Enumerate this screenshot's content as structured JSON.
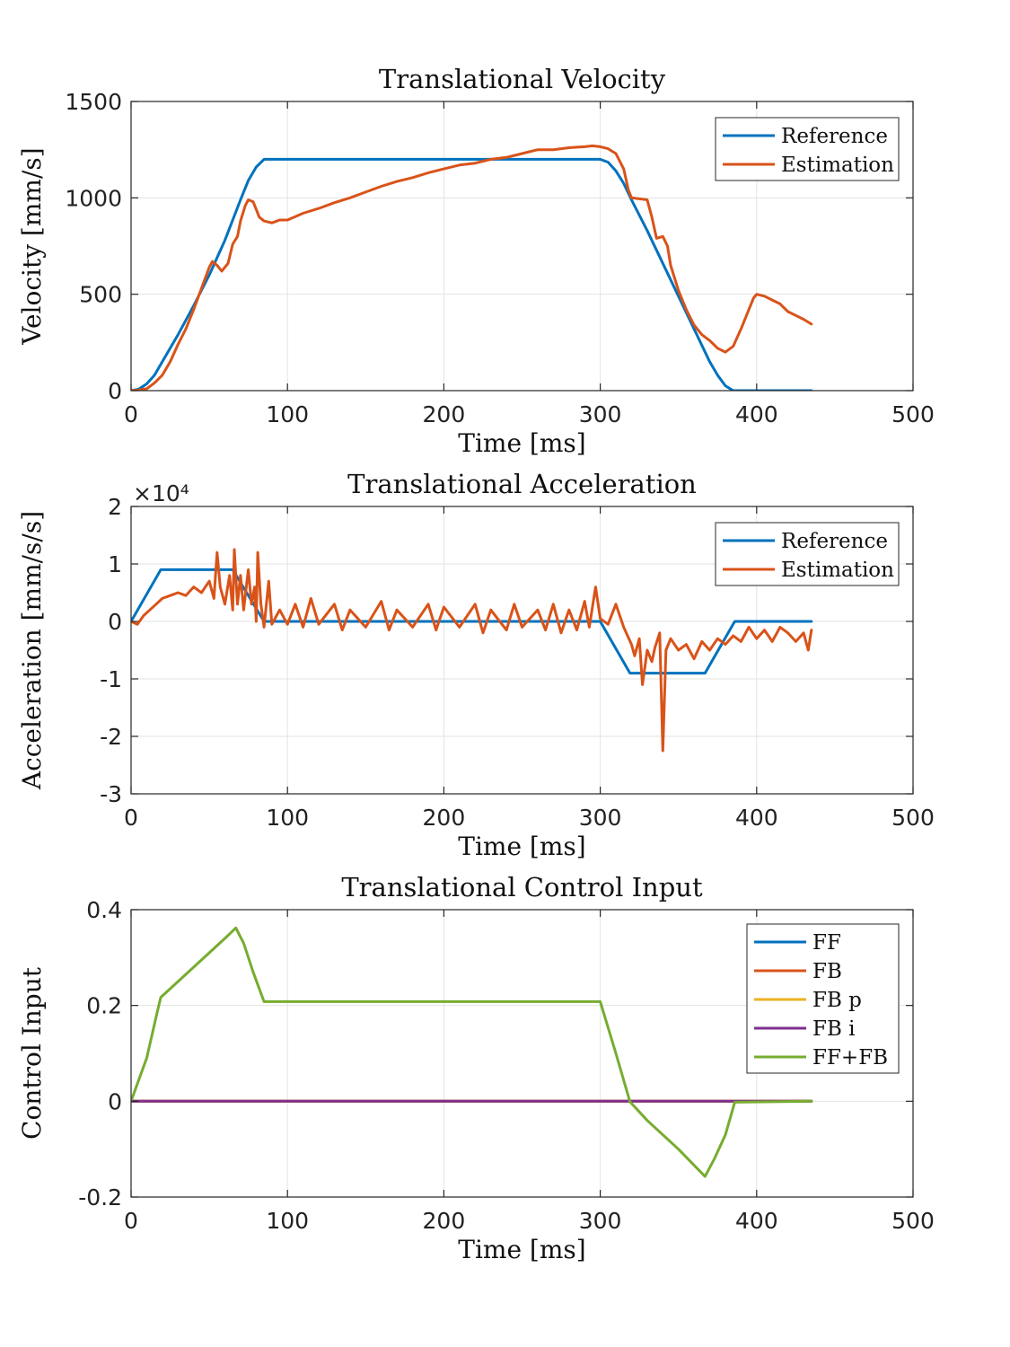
{
  "chart_data": [
    {
      "type": "line",
      "title": "Translational Velocity",
      "xlabel": "Time [ms]",
      "ylabel": "Velocity [mm/s]",
      "xlim": [
        0,
        500
      ],
      "ylim": [
        0,
        1500
      ],
      "xticks": [
        0,
        100,
        200,
        300,
        400,
        500
      ],
      "yticks": [
        0,
        500,
        1000,
        1500
      ],
      "xtick_labels": [
        "0",
        "100",
        "200",
        "300",
        "400",
        "500"
      ],
      "ytick_labels": [
        "0",
        "500",
        "1000",
        "1500"
      ],
      "exponent_label": "",
      "grid": true,
      "legend_position": "top-right",
      "series": [
        {
          "name": "Reference",
          "color": "#0072BD",
          "points": [
            [
              0,
              0
            ],
            [
              5,
              8
            ],
            [
              10,
              35
            ],
            [
              15,
              80
            ],
            [
              20,
              150
            ],
            [
              30,
              290
            ],
            [
              40,
              440
            ],
            [
              50,
              600
            ],
            [
              60,
              780
            ],
            [
              70,
              990
            ],
            [
              75,
              1090
            ],
            [
              80,
              1160
            ],
            [
              85,
              1200
            ],
            [
              150,
              1200
            ],
            [
              200,
              1200
            ],
            [
              250,
              1200
            ],
            [
              300,
              1200
            ],
            [
              305,
              1185
            ],
            [
              310,
              1140
            ],
            [
              315,
              1075
            ],
            [
              320,
              990
            ],
            [
              330,
              830
            ],
            [
              340,
              660
            ],
            [
              350,
              490
            ],
            [
              360,
              320
            ],
            [
              370,
              150
            ],
            [
              375,
              80
            ],
            [
              380,
              25
            ],
            [
              385,
              0
            ],
            [
              435,
              0
            ]
          ]
        },
        {
          "name": "Estimation",
          "color": "#D95319",
          "points": [
            [
              0,
              0
            ],
            [
              5,
              3
            ],
            [
              10,
              10
            ],
            [
              15,
              40
            ],
            [
              20,
              80
            ],
            [
              25,
              150
            ],
            [
              30,
              240
            ],
            [
              35,
              320
            ],
            [
              40,
              420
            ],
            [
              45,
              530
            ],
            [
              50,
              640
            ],
            [
              52,
              670
            ],
            [
              55,
              650
            ],
            [
              58,
              620
            ],
            [
              62,
              660
            ],
            [
              65,
              760
            ],
            [
              68,
              800
            ],
            [
              70,
              880
            ],
            [
              73,
              960
            ],
            [
              75,
              990
            ],
            [
              78,
              980
            ],
            [
              80,
              940
            ],
            [
              82,
              900
            ],
            [
              85,
              880
            ],
            [
              90,
              870
            ],
            [
              95,
              885
            ],
            [
              100,
              885
            ],
            [
              110,
              920
            ],
            [
              120,
              945
            ],
            [
              130,
              975
            ],
            [
              140,
              1000
            ],
            [
              150,
              1030
            ],
            [
              160,
              1060
            ],
            [
              170,
              1085
            ],
            [
              180,
              1105
            ],
            [
              190,
              1130
            ],
            [
              200,
              1150
            ],
            [
              210,
              1170
            ],
            [
              220,
              1180
            ],
            [
              230,
              1200
            ],
            [
              240,
              1210
            ],
            [
              250,
              1230
            ],
            [
              260,
              1250
            ],
            [
              270,
              1250
            ],
            [
              280,
              1260
            ],
            [
              290,
              1265
            ],
            [
              295,
              1270
            ],
            [
              300,
              1265
            ],
            [
              305,
              1255
            ],
            [
              310,
              1230
            ],
            [
              315,
              1150
            ],
            [
              318,
              1040
            ],
            [
              320,
              1000
            ],
            [
              325,
              995
            ],
            [
              330,
              990
            ],
            [
              333,
              900
            ],
            [
              336,
              790
            ],
            [
              340,
              800
            ],
            [
              343,
              750
            ],
            [
              345,
              650
            ],
            [
              350,
              520
            ],
            [
              355,
              420
            ],
            [
              360,
              340
            ],
            [
              365,
              290
            ],
            [
              370,
              260
            ],
            [
              375,
              220
            ],
            [
              380,
              200
            ],
            [
              385,
              230
            ],
            [
              390,
              320
            ],
            [
              395,
              420
            ],
            [
              398,
              480
            ],
            [
              400,
              500
            ],
            [
              405,
              490
            ],
            [
              410,
              470
            ],
            [
              415,
              450
            ],
            [
              420,
              410
            ],
            [
              425,
              390
            ],
            [
              430,
              370
            ],
            [
              435,
              345
            ]
          ]
        }
      ]
    },
    {
      "type": "line",
      "title": "Translational Acceleration",
      "xlabel": "Time [ms]",
      "ylabel": "Acceleration [mm/s/s]",
      "exponent_label": "×10⁴",
      "xlim": [
        0,
        500
      ],
      "ylim": [
        -30000,
        20000
      ],
      "xticks": [
        0,
        100,
        200,
        300,
        400,
        500
      ],
      "yticks": [
        -30000,
        -20000,
        -10000,
        0,
        10000,
        20000
      ],
      "xtick_labels": [
        "0",
        "100",
        "200",
        "300",
        "400",
        "500"
      ],
      "ytick_labels": [
        "-3",
        "-2",
        "-1",
        "0",
        "1",
        "2"
      ],
      "grid": true,
      "legend_position": "top-right",
      "series": [
        {
          "name": "Reference",
          "color": "#0072BD",
          "points": [
            [
              0,
              0
            ],
            [
              19,
              9000
            ],
            [
              65,
              9000
            ],
            [
              85,
              0
            ],
            [
              300,
              0
            ],
            [
              319,
              -9000
            ],
            [
              367,
              -9000
            ],
            [
              386,
              0
            ],
            [
              435,
              0
            ]
          ]
        },
        {
          "name": "Estimation",
          "color": "#D95319",
          "points": [
            [
              0,
              0
            ],
            [
              4,
              -500
            ],
            [
              8,
              1000
            ],
            [
              12,
              2000
            ],
            [
              16,
              3000
            ],
            [
              20,
              4000
            ],
            [
              25,
              4500
            ],
            [
              30,
              5000
            ],
            [
              35,
              4500
            ],
            [
              40,
              6000
            ],
            [
              45,
              5000
            ],
            [
              50,
              7000
            ],
            [
              53,
              4000
            ],
            [
              55,
              12000
            ],
            [
              57,
              6000
            ],
            [
              60,
              3000
            ],
            [
              63,
              8000
            ],
            [
              65,
              2000
            ],
            [
              66,
              12500
            ],
            [
              68,
              3000
            ],
            [
              70,
              8000
            ],
            [
              72,
              2000
            ],
            [
              75,
              9000
            ],
            [
              77,
              3000
            ],
            [
              79,
              6000
            ],
            [
              80,
              0
            ],
            [
              81,
              12000
            ],
            [
              83,
              3000
            ],
            [
              85,
              -1000
            ],
            [
              88,
              7000
            ],
            [
              90,
              -500
            ],
            [
              95,
              2000
            ],
            [
              100,
              -500
            ],
            [
              105,
              3000
            ],
            [
              110,
              -1000
            ],
            [
              115,
              4000
            ],
            [
              120,
              -500
            ],
            [
              130,
              3000
            ],
            [
              135,
              -1500
            ],
            [
              140,
              2000
            ],
            [
              150,
              -1000
            ],
            [
              160,
              3500
            ],
            [
              165,
              -1500
            ],
            [
              170,
              2000
            ],
            [
              180,
              -1000
            ],
            [
              190,
              3000
            ],
            [
              195,
              -1500
            ],
            [
              200,
              2500
            ],
            [
              210,
              -1000
            ],
            [
              220,
              3000
            ],
            [
              225,
              -2000
            ],
            [
              230,
              2000
            ],
            [
              240,
              -1500
            ],
            [
              245,
              3000
            ],
            [
              250,
              -1000
            ],
            [
              260,
              2000
            ],
            [
              265,
              -1500
            ],
            [
              270,
              3000
            ],
            [
              275,
              -2000
            ],
            [
              280,
              2000
            ],
            [
              285,
              -1500
            ],
            [
              290,
              3500
            ],
            [
              293,
              -1000
            ],
            [
              297,
              6000
            ],
            [
              300,
              500
            ],
            [
              305,
              -500
            ],
            [
              310,
              3000
            ],
            [
              315,
              -1000
            ],
            [
              320,
              -4000
            ],
            [
              322,
              -6000
            ],
            [
              325,
              -3000
            ],
            [
              327,
              -11000
            ],
            [
              330,
              -5000
            ],
            [
              333,
              -7000
            ],
            [
              335,
              -4500
            ],
            [
              338,
              -2000
            ],
            [
              340,
              -22500
            ],
            [
              342,
              -5000
            ],
            [
              345,
              -3000
            ],
            [
              350,
              -5000
            ],
            [
              355,
              -4000
            ],
            [
              360,
              -6500
            ],
            [
              365,
              -3500
            ],
            [
              370,
              -5000
            ],
            [
              375,
              -3000
            ],
            [
              380,
              -4000
            ],
            [
              385,
              -2500
            ],
            [
              390,
              -3500
            ],
            [
              395,
              -1000
            ],
            [
              400,
              -3000
            ],
            [
              405,
              -1500
            ],
            [
              410,
              -3500
            ],
            [
              415,
              -1000
            ],
            [
              420,
              -2000
            ],
            [
              425,
              -3500
            ],
            [
              430,
              -2000
            ],
            [
              433,
              -5000
            ],
            [
              435,
              -1500
            ]
          ]
        }
      ]
    },
    {
      "type": "line",
      "title": "Translational Control Input",
      "xlabel": "Time [ms]",
      "ylabel": "Control Input",
      "xlim": [
        0,
        500
      ],
      "ylim": [
        -0.2,
        0.4
      ],
      "xticks": [
        0,
        100,
        200,
        300,
        400,
        500
      ],
      "yticks": [
        -0.2,
        0,
        0.2,
        0.4
      ],
      "xtick_labels": [
        "0",
        "100",
        "200",
        "300",
        "400",
        "500"
      ],
      "ytick_labels": [
        "-0.2",
        "0",
        "0.2",
        "0.4"
      ],
      "exponent_label": "",
      "grid": true,
      "legend_position": "top-right",
      "series": [
        {
          "name": "FF",
          "color": "#0072BD",
          "points": [
            [
              0,
              0
            ],
            [
              435,
              0
            ]
          ]
        },
        {
          "name": "FB",
          "color": "#D95319",
          "points": [
            [
              0,
              0
            ],
            [
              435,
              0
            ]
          ]
        },
        {
          "name": "FB p",
          "color": "#EDB120",
          "points": [
            [
              0,
              0
            ],
            [
              435,
              0
            ]
          ]
        },
        {
          "name": "FB i",
          "color": "#7E2F8E",
          "points": [
            [
              0,
              0
            ],
            [
              435,
              0
            ]
          ]
        },
        {
          "name": "FF+FB",
          "color": "#77AC30",
          "points": [
            [
              0,
              0
            ],
            [
              10,
              0.09
            ],
            [
              17,
              0.19
            ],
            [
              19,
              0.217
            ],
            [
              30,
              0.25
            ],
            [
              45,
              0.295
            ],
            [
              60,
              0.34
            ],
            [
              67,
              0.362
            ],
            [
              72,
              0.33
            ],
            [
              78,
              0.27
            ],
            [
              85,
              0.208
            ],
            [
              300,
              0.208
            ],
            [
              310,
              0.1
            ],
            [
              319,
              -0.001
            ],
            [
              330,
              -0.04
            ],
            [
              350,
              -0.1
            ],
            [
              367,
              -0.157
            ],
            [
              373,
              -0.12
            ],
            [
              380,
              -0.07
            ],
            [
              386,
              -0.002
            ],
            [
              435,
              0
            ]
          ]
        }
      ]
    }
  ]
}
